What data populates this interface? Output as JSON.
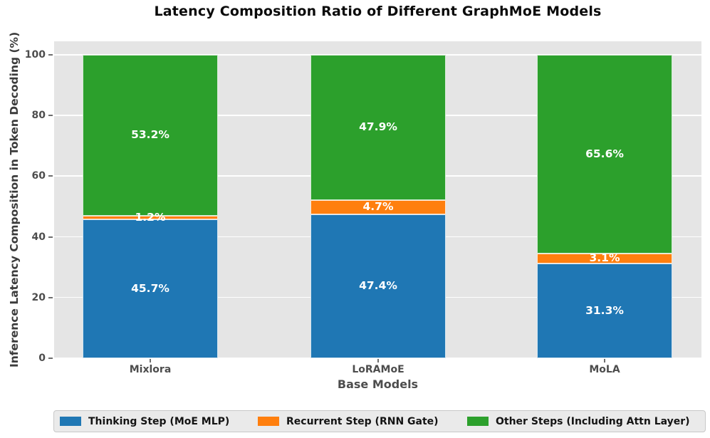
{
  "chart_data": {
    "type": "bar",
    "stacked": true,
    "title": "Latency Composition Ratio of Different GraphMoE Models",
    "xlabel": "Base Models",
    "ylabel": "Inference Latency Composition in Token Decoding (%)",
    "categories": [
      "Mixlora",
      "LoRAMoE",
      "MoLA"
    ],
    "series": [
      {
        "name": "Thinking Step (MoE MLP)",
        "color": "#1f77b4",
        "values": [
          45.7,
          47.4,
          31.3
        ],
        "labels": [
          "45.7%",
          "47.4%",
          "31.3%"
        ]
      },
      {
        "name": "Recurrent Step (RNN Gate)",
        "color": "#ff7f0e",
        "values": [
          1.2,
          4.7,
          3.1
        ],
        "labels": [
          "1.2%",
          "4.7%",
          "3.1%"
        ]
      },
      {
        "name": "Other Steps (Including Attn Layer)",
        "color": "#2ca02c",
        "values": [
          53.2,
          47.9,
          65.6
        ],
        "labels": [
          "53.2%",
          "47.9%",
          "65.6%"
        ]
      }
    ],
    "yticks": [
      0,
      20,
      40,
      60,
      80,
      100
    ],
    "ytick_labels": [
      "0",
      "20",
      "40",
      "60",
      "80",
      "100"
    ],
    "ylim": [
      0,
      104.5
    ],
    "grid": true,
    "legend_position": "bottom",
    "plot_background": "#e5e5e5",
    "gridline_color": "#ffffff",
    "tick_color": "#6e6e6e",
    "label_text_color": "#ffffff"
  }
}
